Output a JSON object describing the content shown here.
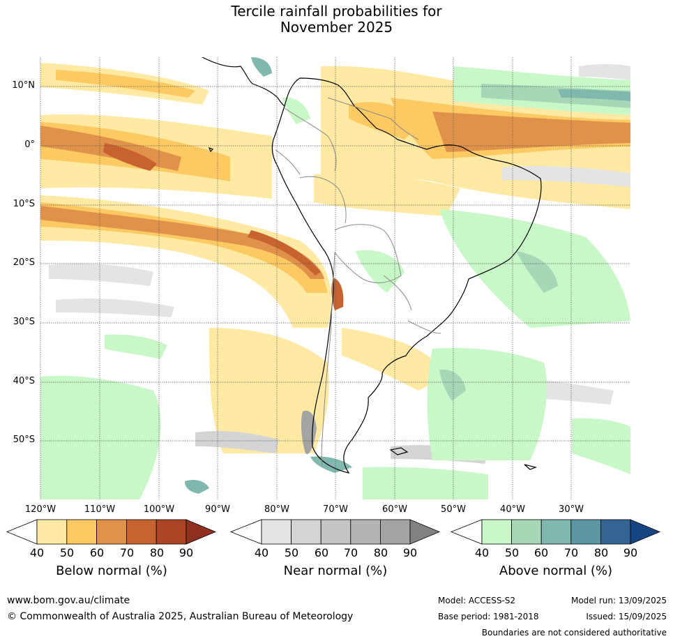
{
  "title": {
    "line1": "Tercile rainfall probabilities for",
    "line2": "November 2025"
  },
  "map": {
    "projection": "equirectangular",
    "lon_range": [
      "120°W",
      "20°W"
    ],
    "lat_range": [
      "15°N",
      "60°S"
    ],
    "gridlines": true,
    "lat_labels": [
      "10°N",
      "0°",
      "10°S",
      "20°S",
      "30°S",
      "40°S",
      "50°S"
    ],
    "lon_labels": [
      "120°W",
      "110°W",
      "100°W",
      "90°W",
      "80°W",
      "70°W",
      "60°W",
      "50°W",
      "40°W",
      "30°W"
    ],
    "coastline_color": "#000000",
    "border_color": "#888888"
  },
  "colorbars": [
    {
      "title": "Below normal (%)",
      "ticks": [
        "40",
        "50",
        "60",
        "70",
        "80",
        "90"
      ],
      "colors": [
        "#ffe9a3",
        "#fdc962",
        "#e0924a",
        "#c8632f",
        "#ad4524",
        "#8f2f1d"
      ]
    },
    {
      "title": "Near normal (%)",
      "ticks": [
        "40",
        "50",
        "60",
        "70",
        "80",
        "90"
      ],
      "colors": [
        "#e4e4e4",
        "#d4d4d4",
        "#c4c4c4",
        "#b4b4b4",
        "#a4a4a4",
        "#828282"
      ]
    },
    {
      "title": "Above normal (%)",
      "ticks": [
        "40",
        "50",
        "60",
        "70",
        "80",
        "90"
      ],
      "colors": [
        "#c8f7c8",
        "#a6d8b8",
        "#80b8ae",
        "#5c96a2",
        "#356594",
        "#164682"
      ]
    }
  ],
  "footer": {
    "website": "www.bom.gov.au/climate",
    "copyright": "© Commonwealth of Australia 2025, Australian Bureau of Meteorology",
    "model": "Model: ACCESS-S2",
    "base_period": "Base period: 1981-2018",
    "model_run": "Model run: 13/09/2025",
    "issued": "Issued: 15/09/2025",
    "boundaries_note": "Boundaries are not considered authoritative"
  }
}
